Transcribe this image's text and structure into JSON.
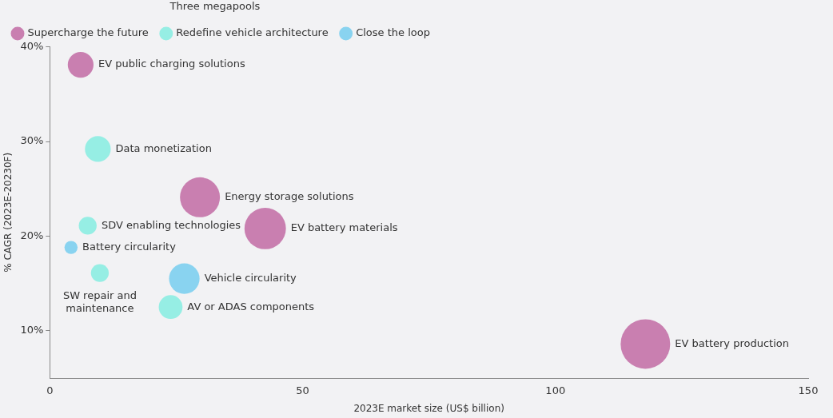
{
  "chart_data": {
    "type": "bubble",
    "xlabel": "2023E market size (US$ billion)",
    "ylabel": "% CAGR (2023E-20230F)",
    "legend_title": "Three megapools",
    "legend": "top left",
    "grid": false,
    "xlim": [
      0,
      150
    ],
    "xticks": [
      0,
      50,
      100,
      150
    ],
    "ylim": [
      5,
      40
    ],
    "yticks": [
      {
        "value": 10,
        "label": "10%"
      },
      {
        "value": 20,
        "label": "20%"
      },
      {
        "value": 30,
        "label": "30%"
      },
      {
        "value": 40,
        "label": "40%"
      }
    ],
    "series": [
      {
        "name": "Supercharge the future",
        "color": "#c97fb0",
        "x": [
          6.1,
          29.7,
          42.6,
          117.8
        ],
        "values": [
          38.1,
          24.1,
          20.8,
          8.6
        ],
        "sizes": [
          0.27,
          0.65,
          0.7,
          1
        ]
      },
      {
        "name": "Redefine vehicle architecture",
        "color": "#96eee4",
        "x": [
          9.5,
          7.5,
          9.9,
          23.9
        ],
        "values": [
          29.2,
          21.1,
          16.1,
          12.5
        ],
        "sizes": [
          0.27,
          0.13,
          0.13,
          0.23
        ]
      },
      {
        "name": "Close the loop",
        "color": "#89d3f0",
        "x": [
          4.2,
          26.6
        ],
        "values": [
          18.8,
          15.5
        ],
        "sizes": [
          0.07,
          0.38
        ]
      }
    ],
    "annotations": [
      {
        "text": "EV public charging solutions",
        "x": 6.1,
        "y": 38.1
      },
      {
        "text": "Energy storage solutions",
        "x": 29.7,
        "y": 24.1
      },
      {
        "text": "EV battery materials",
        "x": 42.6,
        "y": 20.8
      },
      {
        "text": "EV battery production",
        "x": 117.8,
        "y": 8.6
      },
      {
        "text": "Data monetization",
        "x": 9.5,
        "y": 29.2
      },
      {
        "text": "SDV enabling technologies",
        "x": 7.5,
        "y": 21.1
      },
      {
        "text": "SW repair and\nmaintenance",
        "x": 9.9,
        "y": 16.1
      },
      {
        "text": "AV or ADAS components",
        "x": 23.9,
        "y": 12.5
      },
      {
        "text": "Battery circularity",
        "x": 4.2,
        "y": 18.8
      },
      {
        "text": "Vehicle circularity",
        "x": 26.6,
        "y": 15.5
      }
    ]
  }
}
